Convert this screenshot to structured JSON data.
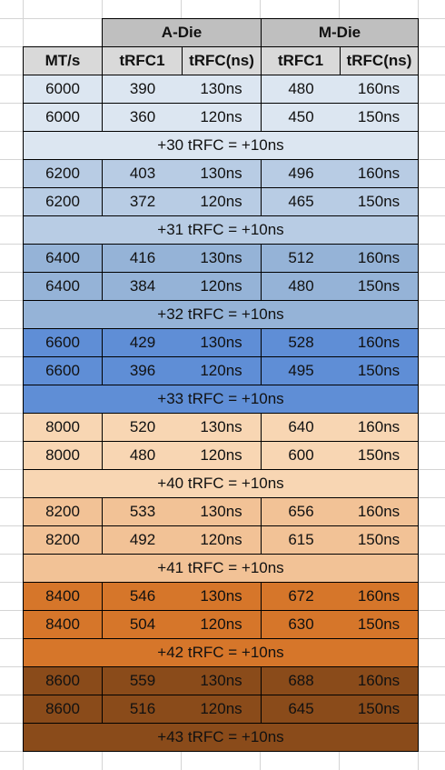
{
  "header": {
    "groups": [
      "A-Die",
      "M-Die"
    ],
    "columns": [
      "MT/s",
      "tRFC1",
      "tRFC(ns)",
      "tRFC1",
      "tRFC(ns)"
    ]
  },
  "groups": [
    {
      "rows": [
        [
          6000,
          390,
          "130ns",
          480,
          "160ns"
        ],
        [
          6000,
          360,
          "120ns",
          450,
          "150ns"
        ]
      ],
      "note": "+30 tRFC = +10ns"
    },
    {
      "rows": [
        [
          6200,
          403,
          "130ns",
          496,
          "160ns"
        ],
        [
          6200,
          372,
          "120ns",
          465,
          "150ns"
        ]
      ],
      "note": "+31 tRFC = +10ns"
    },
    {
      "rows": [
        [
          6400,
          416,
          "130ns",
          512,
          "160ns"
        ],
        [
          6400,
          384,
          "120ns",
          480,
          "150ns"
        ]
      ],
      "note": "+32 tRFC = +10ns"
    },
    {
      "rows": [
        [
          6600,
          429,
          "130ns",
          528,
          "160ns"
        ],
        [
          6600,
          396,
          "120ns",
          495,
          "150ns"
        ]
      ],
      "note": "+33 tRFC = +10ns"
    },
    {
      "rows": [
        [
          8000,
          520,
          "130ns",
          640,
          "160ns"
        ],
        [
          8000,
          480,
          "120ns",
          600,
          "150ns"
        ]
      ],
      "note": "+40 tRFC = +10ns"
    },
    {
      "rows": [
        [
          8200,
          533,
          "130ns",
          656,
          "160ns"
        ],
        [
          8200,
          492,
          "120ns",
          615,
          "150ns"
        ]
      ],
      "note": "+41 tRFC = +10ns"
    },
    {
      "rows": [
        [
          8400,
          546,
          "130ns",
          672,
          "160ns"
        ],
        [
          8400,
          504,
          "120ns",
          630,
          "150ns"
        ]
      ],
      "note": "+42 tRFC = +10ns"
    },
    {
      "rows": [
        [
          8600,
          559,
          "130ns",
          688,
          "160ns"
        ],
        [
          8600,
          516,
          "120ns",
          645,
          "150ns"
        ]
      ],
      "note": "+43 tRFC = +10ns"
    }
  ]
}
